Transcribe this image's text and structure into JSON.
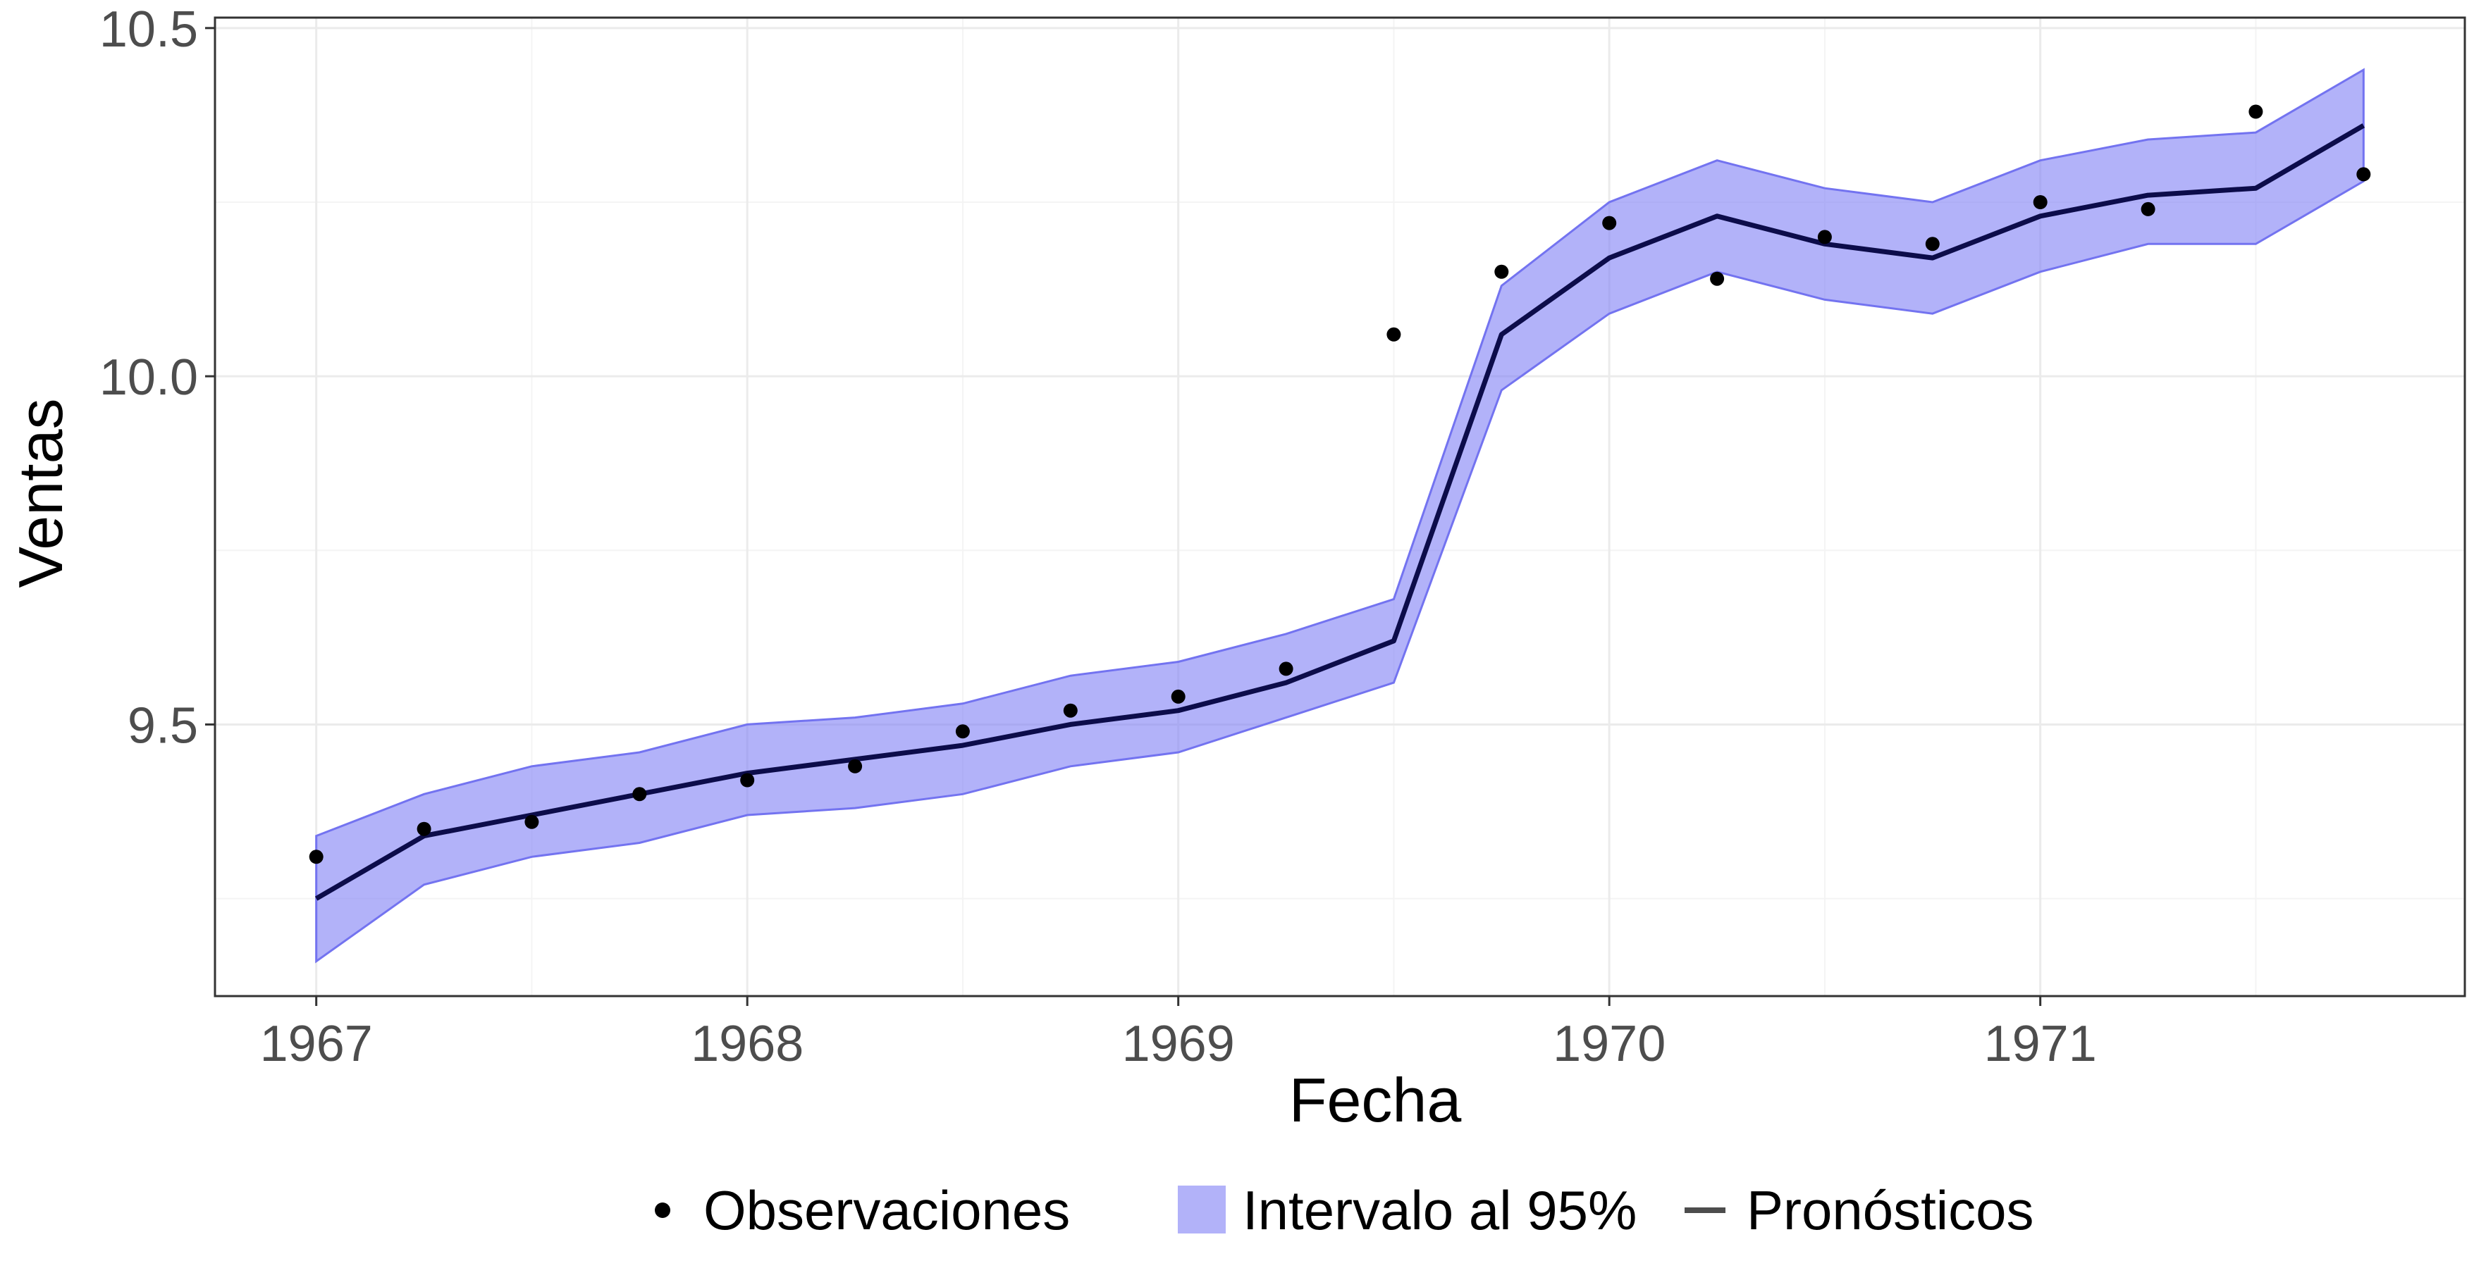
{
  "chart_data": {
    "type": "line",
    "xlabel": "Fecha",
    "ylabel": "Ventas",
    "xlim": [
      1966.765,
      1971.985
    ],
    "ylim": [
      9.11,
      10.515
    ],
    "x_ticks": [
      1967,
      1968,
      1969,
      1970,
      1971
    ],
    "x_tick_labels": [
      "1967",
      "1968",
      "1969",
      "1970",
      "1971"
    ],
    "x_minor_ticks": [
      1967.5,
      1968.5,
      1969.5,
      1970.5,
      1971.5
    ],
    "y_ticks": [
      9.5,
      10.0,
      10.5
    ],
    "y_tick_labels": [
      "9.5",
      "10.0",
      "10.5"
    ],
    "y_minor_ticks": [
      9.25,
      9.75,
      10.25
    ],
    "grid": true,
    "legend_position": "bottom",
    "colors": {
      "band_fill": "#7f7ff5",
      "band_stroke": "#7373f0",
      "forecast_line": "#0c0c4a",
      "points": "#000000",
      "grid_major": "#ebebeb",
      "grid_minor": "#f4f4f4",
      "panel_border": "#333333"
    },
    "x": [
      1967.0,
      1967.25,
      1967.5,
      1967.75,
      1968.0,
      1968.25,
      1968.5,
      1968.75,
      1969.0,
      1969.25,
      1969.5,
      1969.75,
      1970.0,
      1970.25,
      1970.5,
      1970.75,
      1971.0,
      1971.25,
      1971.5,
      1971.75
    ],
    "series": [
      {
        "name": "Observaciones",
        "kind": "points",
        "values": [
          9.31,
          9.35,
          9.36,
          9.4,
          9.42,
          9.44,
          9.49,
          9.52,
          9.54,
          9.58,
          10.06,
          10.15,
          10.22,
          10.14,
          10.2,
          10.19,
          10.25,
          10.24,
          10.38,
          10.29
        ]
      },
      {
        "name": "Pronósticos",
        "kind": "line",
        "values": [
          9.25,
          9.34,
          9.37,
          9.4,
          9.43,
          9.45,
          9.47,
          9.5,
          9.52,
          9.56,
          9.62,
          10.06,
          10.17,
          10.23,
          10.19,
          10.17,
          10.23,
          10.26,
          10.27,
          10.36
        ]
      },
      {
        "name": "Intervalo al 95%",
        "kind": "band",
        "lower": [
          9.16,
          9.27,
          9.31,
          9.33,
          9.37,
          9.38,
          9.4,
          9.44,
          9.46,
          9.51,
          9.56,
          9.98,
          10.09,
          10.15,
          10.11,
          10.09,
          10.15,
          10.19,
          10.19,
          10.28
        ],
        "upper": [
          9.34,
          9.4,
          9.44,
          9.46,
          9.5,
          9.51,
          9.53,
          9.57,
          9.59,
          9.63,
          9.68,
          10.13,
          10.25,
          10.31,
          10.27,
          10.25,
          10.31,
          10.34,
          10.35,
          10.44
        ]
      }
    ],
    "legend": [
      {
        "key": "points",
        "label": "Observaciones"
      },
      {
        "key": "band",
        "label": "Intervalo al 95%"
      },
      {
        "key": "line",
        "label": "Pronósticos"
      }
    ]
  }
}
